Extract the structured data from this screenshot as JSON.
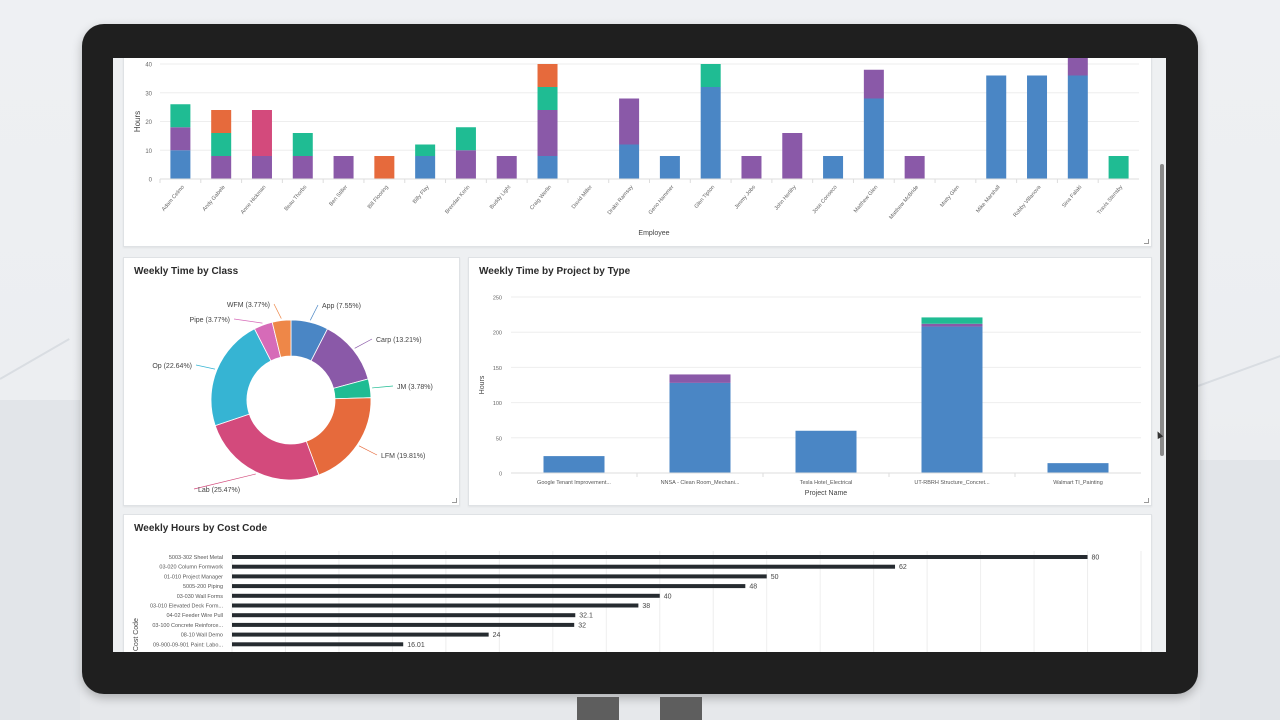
{
  "colors": {
    "blue": "#4a86c5",
    "purple": "#8a59a8",
    "teal": "#1fbc93",
    "orange": "#e66a3c",
    "magenta": "#d34a7c",
    "cyan": "#36b4d3",
    "pink": "#d66bb8",
    "lightorange": "#ee8748",
    "costbar": "#262b30",
    "grid": "#eeeeee",
    "axis_text": "#666666"
  },
  "employee_chart": {
    "ylabel": "Hours",
    "xlabel": "Employee",
    "yticks": [
      "0",
      "10",
      "20",
      "30",
      "40"
    ]
  },
  "class_chart": {
    "title": "Weekly Time by Class"
  },
  "project_chart": {
    "title": "Weekly Time by Project by Type",
    "ylabel": "Hours",
    "xlabel": "Project Name",
    "yticks": [
      "0",
      "50",
      "100",
      "150",
      "200",
      "250"
    ]
  },
  "costcode_chart": {
    "title": "Weekly Hours by Cost Code",
    "ylabel": "Cost Code"
  },
  "chart_data": [
    {
      "type": "bar",
      "stacked": true,
      "title": "",
      "xlabel": "Employee",
      "ylabel": "Hours",
      "ylim": [
        0,
        40
      ],
      "grid": true,
      "categories": [
        "Adam Celmo",
        "Andy Gabele",
        "Anne Hickman",
        "Beau Thorbs",
        "Ben Stiller",
        "Bill Flooring",
        "Billy Flay",
        "Brendan Kerin",
        "Buddy Light",
        "Craig Werlin",
        "David Miller",
        "Drake Ramsay",
        "Geno Hammer",
        "Glen Tipton",
        "Jimmy Jobs",
        "John Herlihy",
        "Jose Conseco",
        "Matthew Glen",
        "Matthew McBride",
        "Matty Glen",
        "Mike Marshall",
        "Robby Villanova",
        "Sina Falaki",
        "Travis Stensby"
      ],
      "series": [
        {
          "name": "blue",
          "color": "#4a86c5",
          "values": [
            10,
            0,
            0,
            0,
            0,
            0,
            8,
            0,
            0,
            8,
            0,
            12,
            8,
            32,
            0,
            0,
            8,
            28,
            0,
            0,
            36,
            36,
            36,
            0
          ]
        },
        {
          "name": "purple",
          "color": "#8a59a8",
          "values": [
            8,
            8,
            8,
            8,
            8,
            0,
            0,
            10,
            8,
            16,
            0,
            16,
            0,
            0,
            8,
            16,
            0,
            10,
            8,
            0,
            0,
            0,
            8,
            0
          ]
        },
        {
          "name": "teal",
          "color": "#1fbc93",
          "values": [
            8,
            8,
            0,
            8,
            0,
            0,
            4,
            8,
            0,
            8,
            0,
            0,
            0,
            8,
            0,
            0,
            0,
            0,
            0,
            0,
            0,
            0,
            0,
            8
          ]
        },
        {
          "name": "orange",
          "color": "#e66a3c",
          "values": [
            0,
            8,
            0,
            0,
            0,
            8,
            0,
            0,
            0,
            8,
            0,
            0,
            0,
            0,
            0,
            0,
            0,
            0,
            0,
            0,
            0,
            0,
            0,
            0
          ]
        },
        {
          "name": "magenta",
          "color": "#d34a7c",
          "values": [
            0,
            0,
            16,
            0,
            0,
            0,
            0,
            0,
            0,
            0,
            0,
            0,
            0,
            0,
            0,
            0,
            0,
            0,
            0,
            0,
            0,
            0,
            0,
            0
          ]
        }
      ]
    },
    {
      "type": "pie",
      "donut": true,
      "title": "Weekly Time by Class",
      "slices": [
        {
          "label": "App",
          "value": 7.55,
          "display": "App (7.55%)",
          "color": "#4a86c5"
        },
        {
          "label": "Carp",
          "value": 13.21,
          "display": "Carp (13.21%)",
          "color": "#8a59a8"
        },
        {
          "label": "JM",
          "value": 3.78,
          "display": "JM (3.78%)",
          "color": "#1fbc93"
        },
        {
          "label": "LFM",
          "value": 19.81,
          "display": "LFM (19.81%)",
          "color": "#e66a3c"
        },
        {
          "label": "Lab",
          "value": 25.47,
          "display": "Lab (25.47%)",
          "color": "#d34a7c"
        },
        {
          "label": "Op",
          "value": 22.64,
          "display": "Op (22.64%)",
          "color": "#36b4d3"
        },
        {
          "label": "Pipe",
          "value": 3.77,
          "display": "Pipe (3.77%)",
          "color": "#d66bb8"
        },
        {
          "label": "WFM",
          "value": 3.77,
          "display": "WFM (3.77%)",
          "color": "#ee8748"
        }
      ]
    },
    {
      "type": "bar",
      "stacked": true,
      "title": "Weekly Time by Project by Type",
      "xlabel": "Project Name",
      "ylabel": "Hours",
      "ylim": [
        0,
        250
      ],
      "grid": true,
      "categories": [
        "Google Tenant Improvement...",
        "NNSA - Clean Room_Mechani...",
        "Tesla Hotel_Electrical",
        "UT-RBRH Structure_Concret...",
        "Walmart TI_Painting"
      ],
      "series": [
        {
          "name": "blue",
          "color": "#4a86c5",
          "values": [
            24,
            128,
            60,
            208,
            14
          ]
        },
        {
          "name": "purple",
          "color": "#8a59a8",
          "values": [
            0,
            12,
            0,
            4,
            0
          ]
        },
        {
          "name": "teal",
          "color": "#1fbc93",
          "values": [
            0,
            0,
            0,
            9,
            0
          ]
        }
      ]
    },
    {
      "type": "bar",
      "orientation": "horizontal",
      "title": "Weekly Hours by Cost Code",
      "ylabel": "Cost Code",
      "xlim": [
        0,
        85
      ],
      "grid": true,
      "categories": [
        "5003-302 Sheet Metal",
        "03-020 Column Formwork",
        "01-010 Project Manager",
        "5005-200 Piping",
        "03-030 Wall Forms",
        "03-010 Elevated Deck Form...",
        "04-02 Feeder Wire Pull",
        "03-100 Concrete Reinforce...",
        "08-10 Wall Demo",
        "09-900-09-901 Paint: Labo..."
      ],
      "values": [
        80,
        62,
        50,
        48,
        40,
        38,
        32.1,
        32,
        24,
        16.01
      ],
      "value_labels": [
        "80",
        "62",
        "50",
        "48",
        "40",
        "38",
        "32.1",
        "32",
        "24",
        "16.01"
      ]
    }
  ]
}
